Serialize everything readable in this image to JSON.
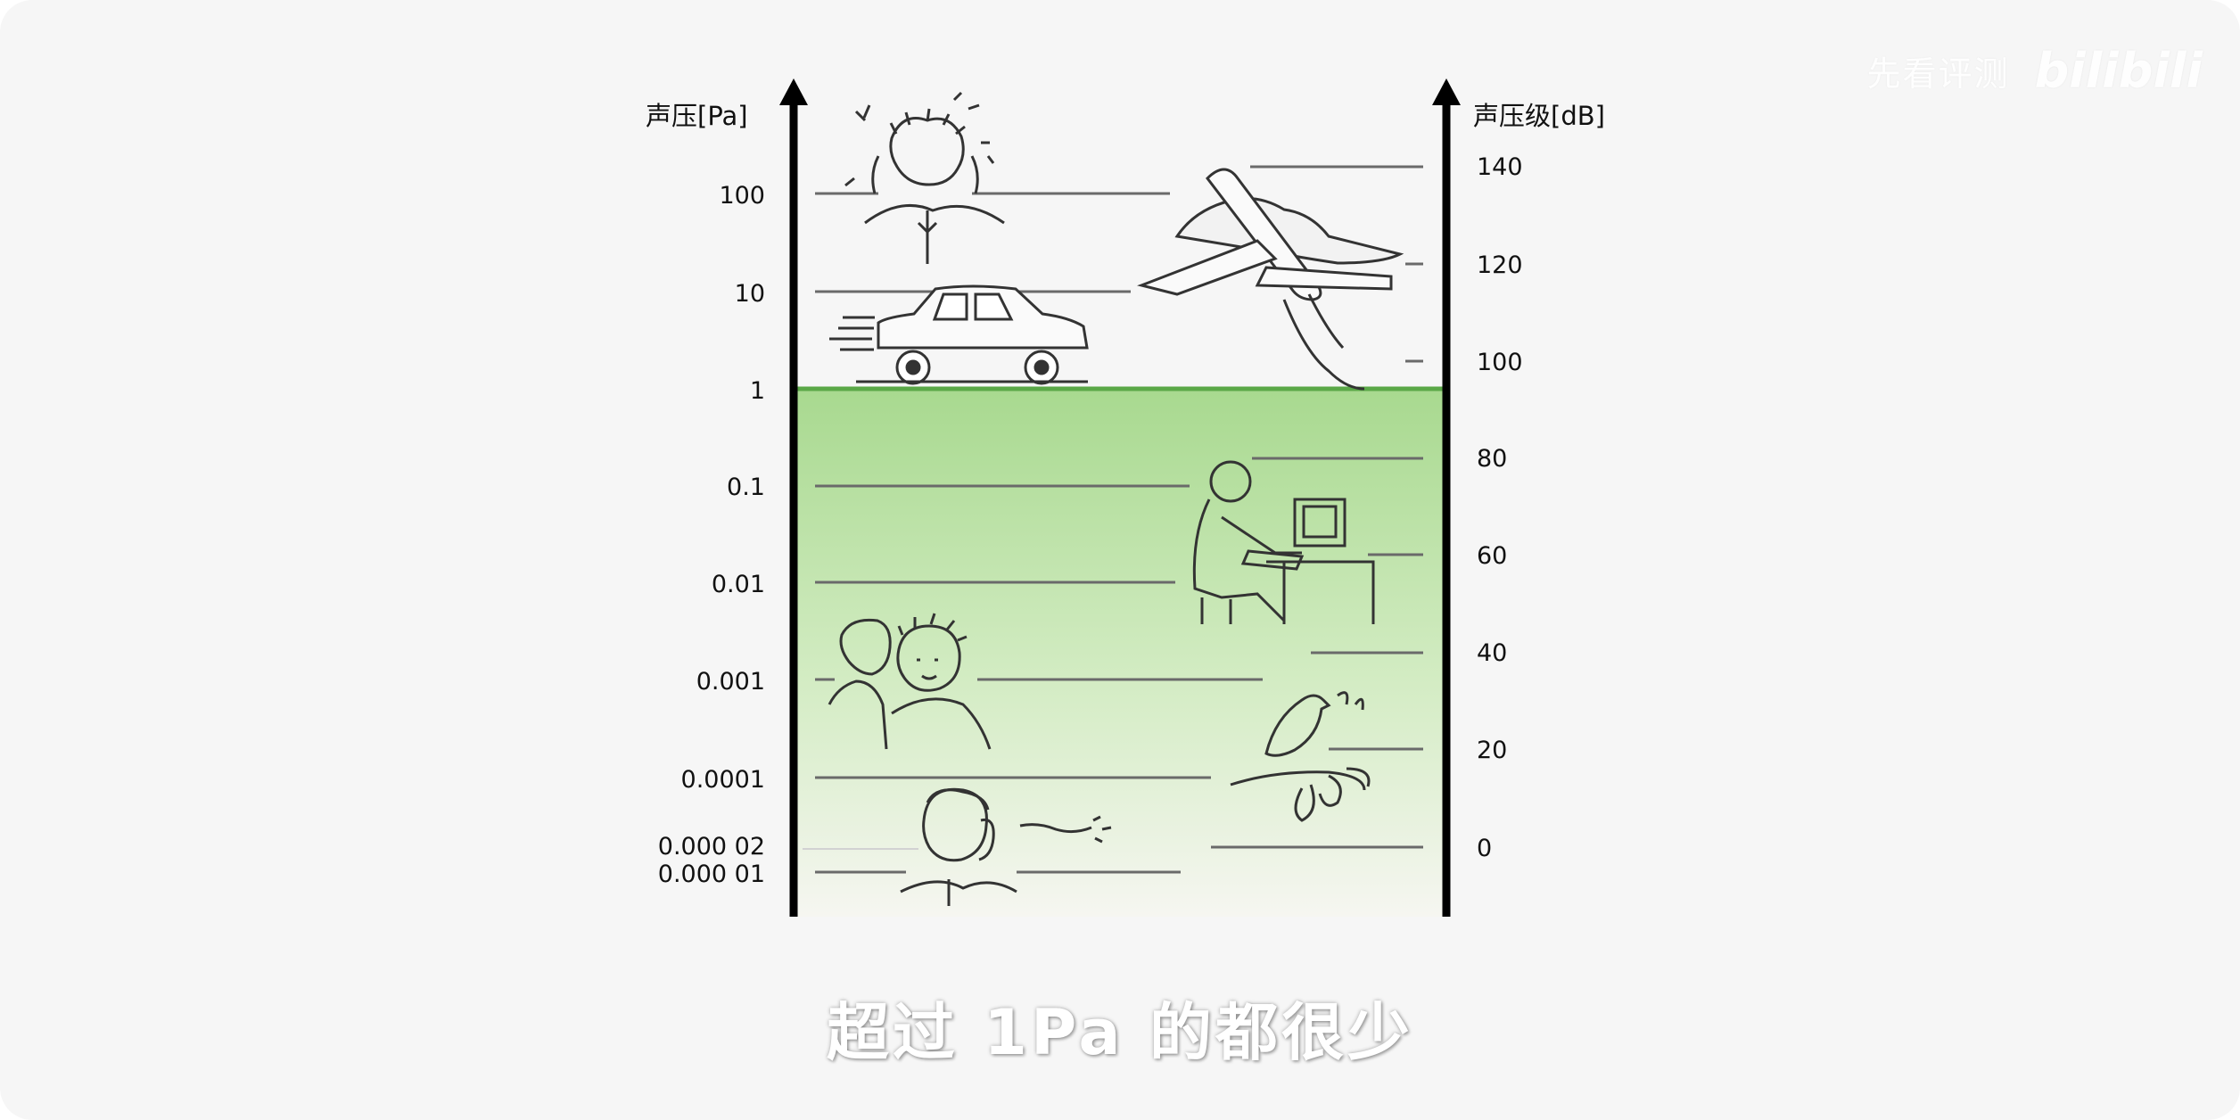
{
  "watermark": {
    "text": "先看评测",
    "logo": "bilibili"
  },
  "subtitle": "超过 1Pa 的都很少",
  "diagram": {
    "left_axis_title": "声压[Pa]",
    "right_axis_title": "声压级[dB]",
    "left_ticks": [
      "100",
      "10",
      "1",
      "0.1",
      "0.01",
      "0.001",
      "0.0001",
      "0.000 02",
      "0.000 01"
    ],
    "right_ticks": [
      "140",
      "120",
      "100",
      "80",
      "60",
      "40",
      "20",
      "0"
    ],
    "highlight_color": "#a8d98f",
    "threshold_line_color": "#5aa847",
    "illustrations": [
      "person-covering-ears-icon",
      "car-icon",
      "jet-airplane-icon",
      "person-at-computer-icon",
      "two-people-whispering-icon",
      "bird-singing-icon",
      "person-listening-icon"
    ]
  }
}
